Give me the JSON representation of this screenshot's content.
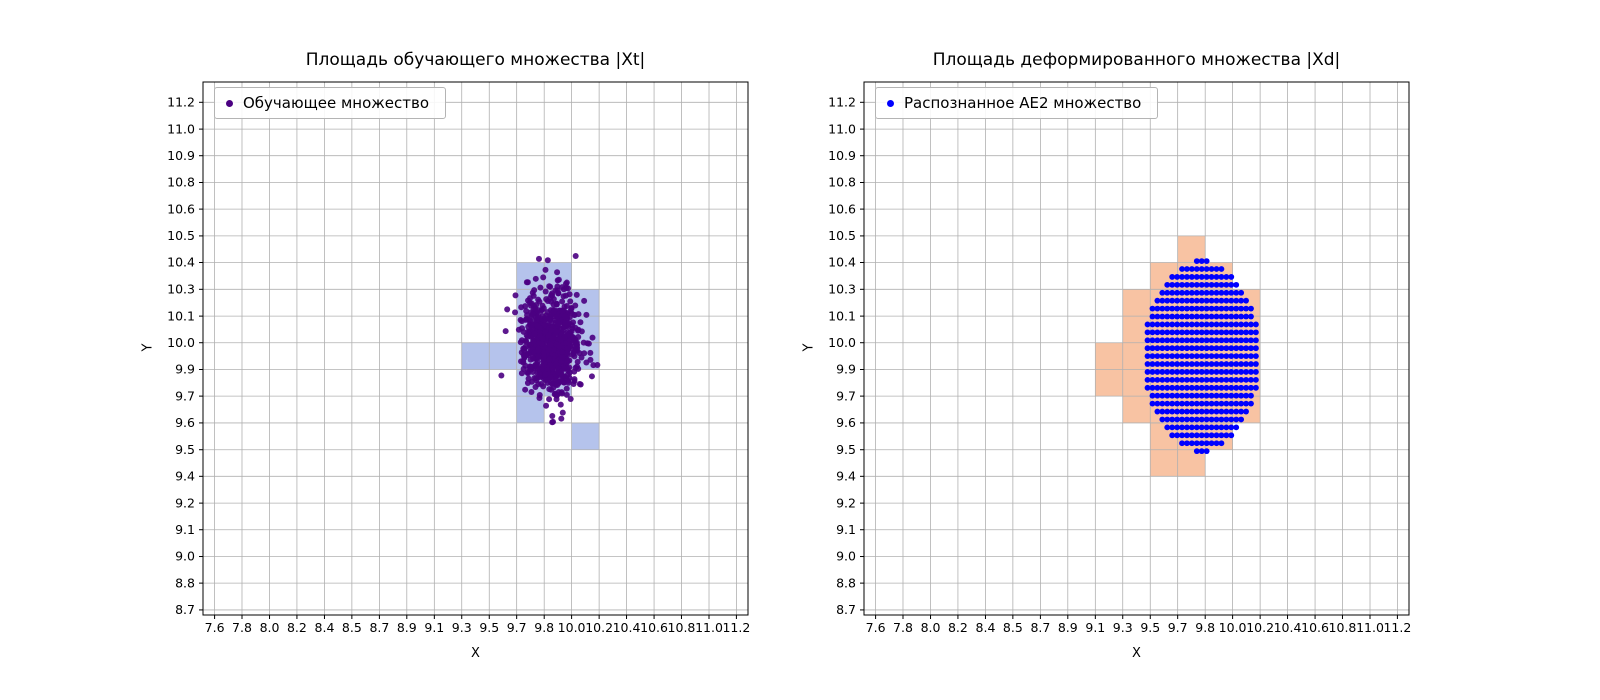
{
  "figure": {
    "background": "#ffffff"
  },
  "chart_data": [
    {
      "type": "scatter",
      "title": "Площадь обучающего множества |Xt|",
      "xlabel": "X",
      "ylabel": "Y",
      "xlim": [
        7.52,
        11.28
      ],
      "ylim": [
        8.675,
        11.3
      ],
      "grid": true,
      "grid_color": "#b0b0b0",
      "legend": {
        "label": "Обучающее множество",
        "marker_color": "#4B0082",
        "position": "upper left"
      },
      "x_tick_positions": [
        7.6,
        7.789,
        7.979,
        8.168,
        8.358,
        8.547,
        8.737,
        8.926,
        9.116,
        9.305,
        9.495,
        9.684,
        9.874,
        10.063,
        10.253,
        10.442,
        10.632,
        10.821,
        11.011,
        11.2
      ],
      "x_tick_labels": [
        "7.6",
        "7.8",
        "8.0",
        "8.2",
        "8.4",
        "8.5",
        "8.7",
        "8.9",
        "9.1",
        "9.3",
        "9.5",
        "9.7",
        "9.8",
        "10.0",
        "10.2",
        "10.4",
        "10.6",
        "10.8",
        "11.0",
        "11.2"
      ],
      "y_tick_positions": [
        8.7,
        8.832,
        8.963,
        9.095,
        9.226,
        9.358,
        9.489,
        9.621,
        9.753,
        9.884,
        10.016,
        10.147,
        10.279,
        10.411,
        10.542,
        10.674,
        10.805,
        10.937,
        11.068,
        11.2
      ],
      "y_tick_labels": [
        "8.7",
        "8.8",
        "9.0",
        "9.1",
        "9.2",
        "9.4",
        "9.5",
        "9.6",
        "9.7",
        "9.9",
        "10.0",
        "10.1",
        "10.3",
        "10.4",
        "10.5",
        "10.6",
        "10.8",
        "10.9",
        "11.0",
        "11.2"
      ],
      "cell_color": "#b5c3ec",
      "highlight_cells": [
        [
          9.684,
          10.279,
          9.874,
          10.411
        ],
        [
          9.874,
          10.279,
          10.063,
          10.411
        ],
        [
          9.684,
          10.147,
          9.874,
          10.279
        ],
        [
          9.874,
          10.147,
          10.063,
          10.279
        ],
        [
          10.063,
          10.147,
          10.253,
          10.279
        ],
        [
          9.684,
          10.016,
          9.874,
          10.147
        ],
        [
          9.874,
          10.016,
          10.063,
          10.147
        ],
        [
          10.063,
          10.016,
          10.253,
          10.147
        ],
        [
          9.305,
          9.884,
          9.495,
          10.016
        ],
        [
          9.495,
          9.884,
          9.684,
          10.016
        ],
        [
          9.684,
          9.884,
          9.874,
          10.016
        ],
        [
          9.874,
          9.884,
          10.063,
          10.016
        ],
        [
          10.063,
          9.884,
          10.253,
          10.016
        ],
        [
          9.684,
          9.753,
          9.874,
          9.884
        ],
        [
          9.874,
          9.753,
          10.063,
          9.884
        ],
        [
          9.684,
          9.621,
          9.874,
          9.753
        ],
        [
          10.063,
          9.489,
          10.253,
          9.621
        ]
      ],
      "scatter": {
        "kind": "gaussian_cluster",
        "n": 800,
        "center": [
          9.92,
          10.02
        ],
        "std": [
          0.095,
          0.125
        ],
        "seed": 7,
        "color": "#4B0082",
        "radius": 3.0,
        "opacity": 0.9
      }
    },
    {
      "type": "scatter",
      "title": "Площадь деформированного множества |Xd|",
      "xlabel": "X",
      "ylabel": "Y",
      "xlim": [
        7.52,
        11.28
      ],
      "ylim": [
        8.675,
        11.3
      ],
      "grid": true,
      "grid_color": "#b0b0b0",
      "legend": {
        "label": "Распознанное АЕ2 множество",
        "marker_color": "#0000ff",
        "position": "upper left"
      },
      "x_tick_positions": [
        7.6,
        7.789,
        7.979,
        8.168,
        8.358,
        8.547,
        8.737,
        8.926,
        9.116,
        9.305,
        9.495,
        9.684,
        9.874,
        10.063,
        10.253,
        10.442,
        10.632,
        10.821,
        11.011,
        11.2
      ],
      "x_tick_labels": [
        "7.6",
        "7.8",
        "8.0",
        "8.2",
        "8.4",
        "8.5",
        "8.7",
        "8.9",
        "9.1",
        "9.3",
        "9.5",
        "9.7",
        "9.8",
        "10.0",
        "10.2",
        "10.4",
        "10.6",
        "10.8",
        "11.0",
        "11.2"
      ],
      "y_tick_positions": [
        8.7,
        8.832,
        8.963,
        9.095,
        9.226,
        9.358,
        9.489,
        9.621,
        9.753,
        9.884,
        10.016,
        10.147,
        10.279,
        10.411,
        10.542,
        10.674,
        10.805,
        10.937,
        11.068,
        11.2
      ],
      "y_tick_labels": [
        "8.7",
        "8.8",
        "9.0",
        "9.1",
        "9.2",
        "9.4",
        "9.5",
        "9.6",
        "9.7",
        "9.9",
        "10.0",
        "10.1",
        "10.3",
        "10.4",
        "10.5",
        "10.6",
        "10.8",
        "10.9",
        "11.0",
        "11.2"
      ],
      "cell_color": "#f8c3a3",
      "highlight_cells": [
        [
          9.684,
          10.411,
          9.874,
          10.542
        ],
        [
          9.495,
          10.279,
          9.684,
          10.411
        ],
        [
          9.684,
          10.279,
          9.874,
          10.411
        ],
        [
          9.874,
          10.279,
          10.063,
          10.411
        ],
        [
          9.305,
          10.147,
          9.495,
          10.279
        ],
        [
          9.495,
          10.147,
          9.684,
          10.279
        ],
        [
          9.684,
          10.147,
          9.874,
          10.279
        ],
        [
          9.874,
          10.147,
          10.063,
          10.279
        ],
        [
          10.063,
          10.147,
          10.253,
          10.279
        ],
        [
          9.305,
          10.016,
          9.495,
          10.147
        ],
        [
          9.495,
          10.016,
          9.684,
          10.147
        ],
        [
          9.684,
          10.016,
          9.874,
          10.147
        ],
        [
          9.874,
          10.016,
          10.063,
          10.147
        ],
        [
          10.063,
          10.016,
          10.253,
          10.147
        ],
        [
          9.116,
          9.884,
          9.305,
          10.016
        ],
        [
          9.305,
          9.884,
          9.495,
          10.016
        ],
        [
          9.495,
          9.884,
          9.684,
          10.016
        ],
        [
          9.684,
          9.884,
          9.874,
          10.016
        ],
        [
          9.874,
          9.884,
          10.063,
          10.016
        ],
        [
          10.063,
          9.884,
          10.253,
          10.016
        ],
        [
          9.116,
          9.753,
          9.305,
          9.884
        ],
        [
          9.305,
          9.753,
          9.495,
          9.884
        ],
        [
          9.495,
          9.753,
          9.684,
          9.884
        ],
        [
          9.684,
          9.753,
          9.874,
          9.884
        ],
        [
          9.874,
          9.753,
          10.063,
          9.884
        ],
        [
          10.063,
          9.753,
          10.253,
          9.884
        ],
        [
          9.305,
          9.621,
          9.495,
          9.753
        ],
        [
          9.495,
          9.621,
          9.684,
          9.753
        ],
        [
          9.684,
          9.621,
          9.874,
          9.753
        ],
        [
          9.874,
          9.621,
          10.063,
          9.753
        ],
        [
          10.063,
          9.621,
          10.253,
          9.753
        ],
        [
          9.495,
          9.489,
          9.684,
          9.621
        ],
        [
          9.684,
          9.489,
          9.874,
          9.621
        ],
        [
          9.874,
          9.489,
          10.063,
          9.621
        ],
        [
          9.495,
          9.358,
          9.684,
          9.489
        ],
        [
          9.684,
          9.358,
          9.874,
          9.489
        ]
      ],
      "scatter": {
        "kind": "ellipse_grid",
        "center": [
          9.85,
          9.95
        ],
        "rx": 0.4,
        "ry": 0.47,
        "step": [
          0.034,
          0.039
        ],
        "color": "#0000ff",
        "radius": 2.9,
        "opacity": 1
      }
    }
  ]
}
